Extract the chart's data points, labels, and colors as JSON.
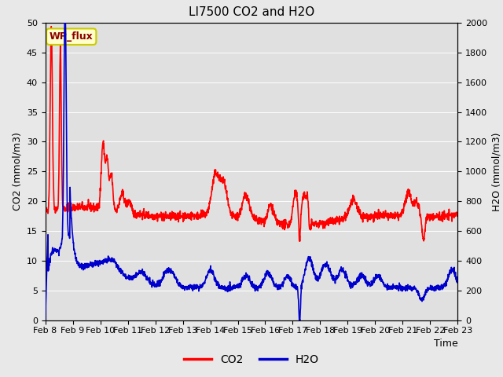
{
  "title": "LI7500 CO2 and H2O",
  "xlabel": "Time",
  "ylabel_left": "CO2 (mmol/m3)",
  "ylabel_right": "H2O (mmol/m3)",
  "ylim_left": [
    0,
    50
  ],
  "ylim_right": [
    0,
    2000
  ],
  "yticks_left": [
    0,
    5,
    10,
    15,
    20,
    25,
    30,
    35,
    40,
    45,
    50
  ],
  "yticks_right": [
    0,
    200,
    400,
    600,
    800,
    1000,
    1200,
    1400,
    1600,
    1800,
    2000
  ],
  "xtick_labels": [
    "Feb 8",
    "Feb 9",
    "Feb 10",
    "Feb 11",
    "Feb 12",
    "Feb 13",
    "Feb 14",
    "Feb 15",
    "Feb 16",
    "Feb 17",
    "Feb 18",
    "Feb 19",
    "Feb 20",
    "Feb 21",
    "Feb 22",
    "Feb 23"
  ],
  "co2_color": "#FF0000",
  "h2o_color": "#0000CC",
  "fig_facecolor": "#E8E8E8",
  "axes_facecolor": "#E0E0E0",
  "grid_color": "#FFFFFF",
  "annotation_text": "WP_flux",
  "annotation_color": "#8B0000",
  "annotation_bg": "#FFFFCC",
  "annotation_edge": "#CCCC00",
  "legend_co2": "CO2",
  "legend_h2o": "H2O",
  "title_fontsize": 11,
  "axis_label_fontsize": 9,
  "tick_fontsize": 8,
  "legend_fontsize": 10,
  "linewidth": 1.2
}
